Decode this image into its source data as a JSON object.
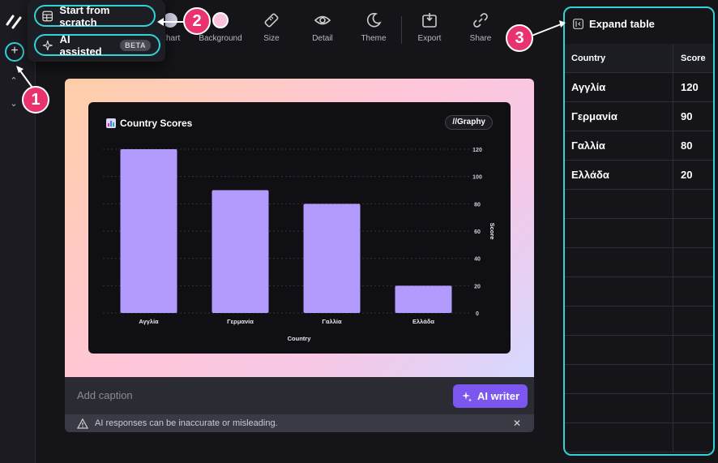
{
  "popup_menu": {
    "start_from_scratch": "Start from scratch",
    "ai_assisted": "AI assisted",
    "beta_badge": "BETA"
  },
  "toolbar": {
    "items": [
      {
        "label": "Chart",
        "icon": "chart-icon"
      },
      {
        "label": "Background",
        "icon": "background-icon"
      },
      {
        "label": "Size",
        "icon": "size-icon"
      },
      {
        "label": "Detail",
        "icon": "eye-icon"
      },
      {
        "label": "Theme",
        "icon": "moon-icon"
      },
      {
        "label": "Export",
        "icon": "export-icon"
      },
      {
        "label": "Share",
        "icon": "link-icon"
      }
    ]
  },
  "callouts": [
    "1",
    "2",
    "3"
  ],
  "chart_data": {
    "type": "bar",
    "title": "Country Scores",
    "badge": "Graphy",
    "categories": [
      "Αγγλία",
      "Γερμανία",
      "Γαλλία",
      "Ελλάδα"
    ],
    "values": [
      120,
      90,
      80,
      20
    ],
    "xlabel": "Country",
    "ylabel": "Score",
    "yticks": [
      0,
      20,
      40,
      60,
      80,
      100,
      120
    ],
    "ylim": [
      0,
      120
    ],
    "y_axis_side": "right",
    "grid": true,
    "bar_color": "#b39afd"
  },
  "caption": {
    "placeholder": "Add caption"
  },
  "ai_writer": {
    "label": "AI writer"
  },
  "warning": {
    "text": "AI responses can be inaccurate or misleading."
  },
  "table_panel": {
    "expand_label": "Expand table",
    "headers": [
      "Country",
      "Score"
    ],
    "rows": [
      [
        "Αγγλία",
        "120"
      ],
      [
        "Γερμανία",
        "90"
      ],
      [
        "Γαλλία",
        "80"
      ],
      [
        "Ελλάδα",
        "20"
      ]
    ],
    "empty_rows": 9
  },
  "colors": {
    "accent_teal": "#2fd3d8",
    "callout_pink": "#e8336f",
    "ai_purple": "#7b57f0"
  }
}
